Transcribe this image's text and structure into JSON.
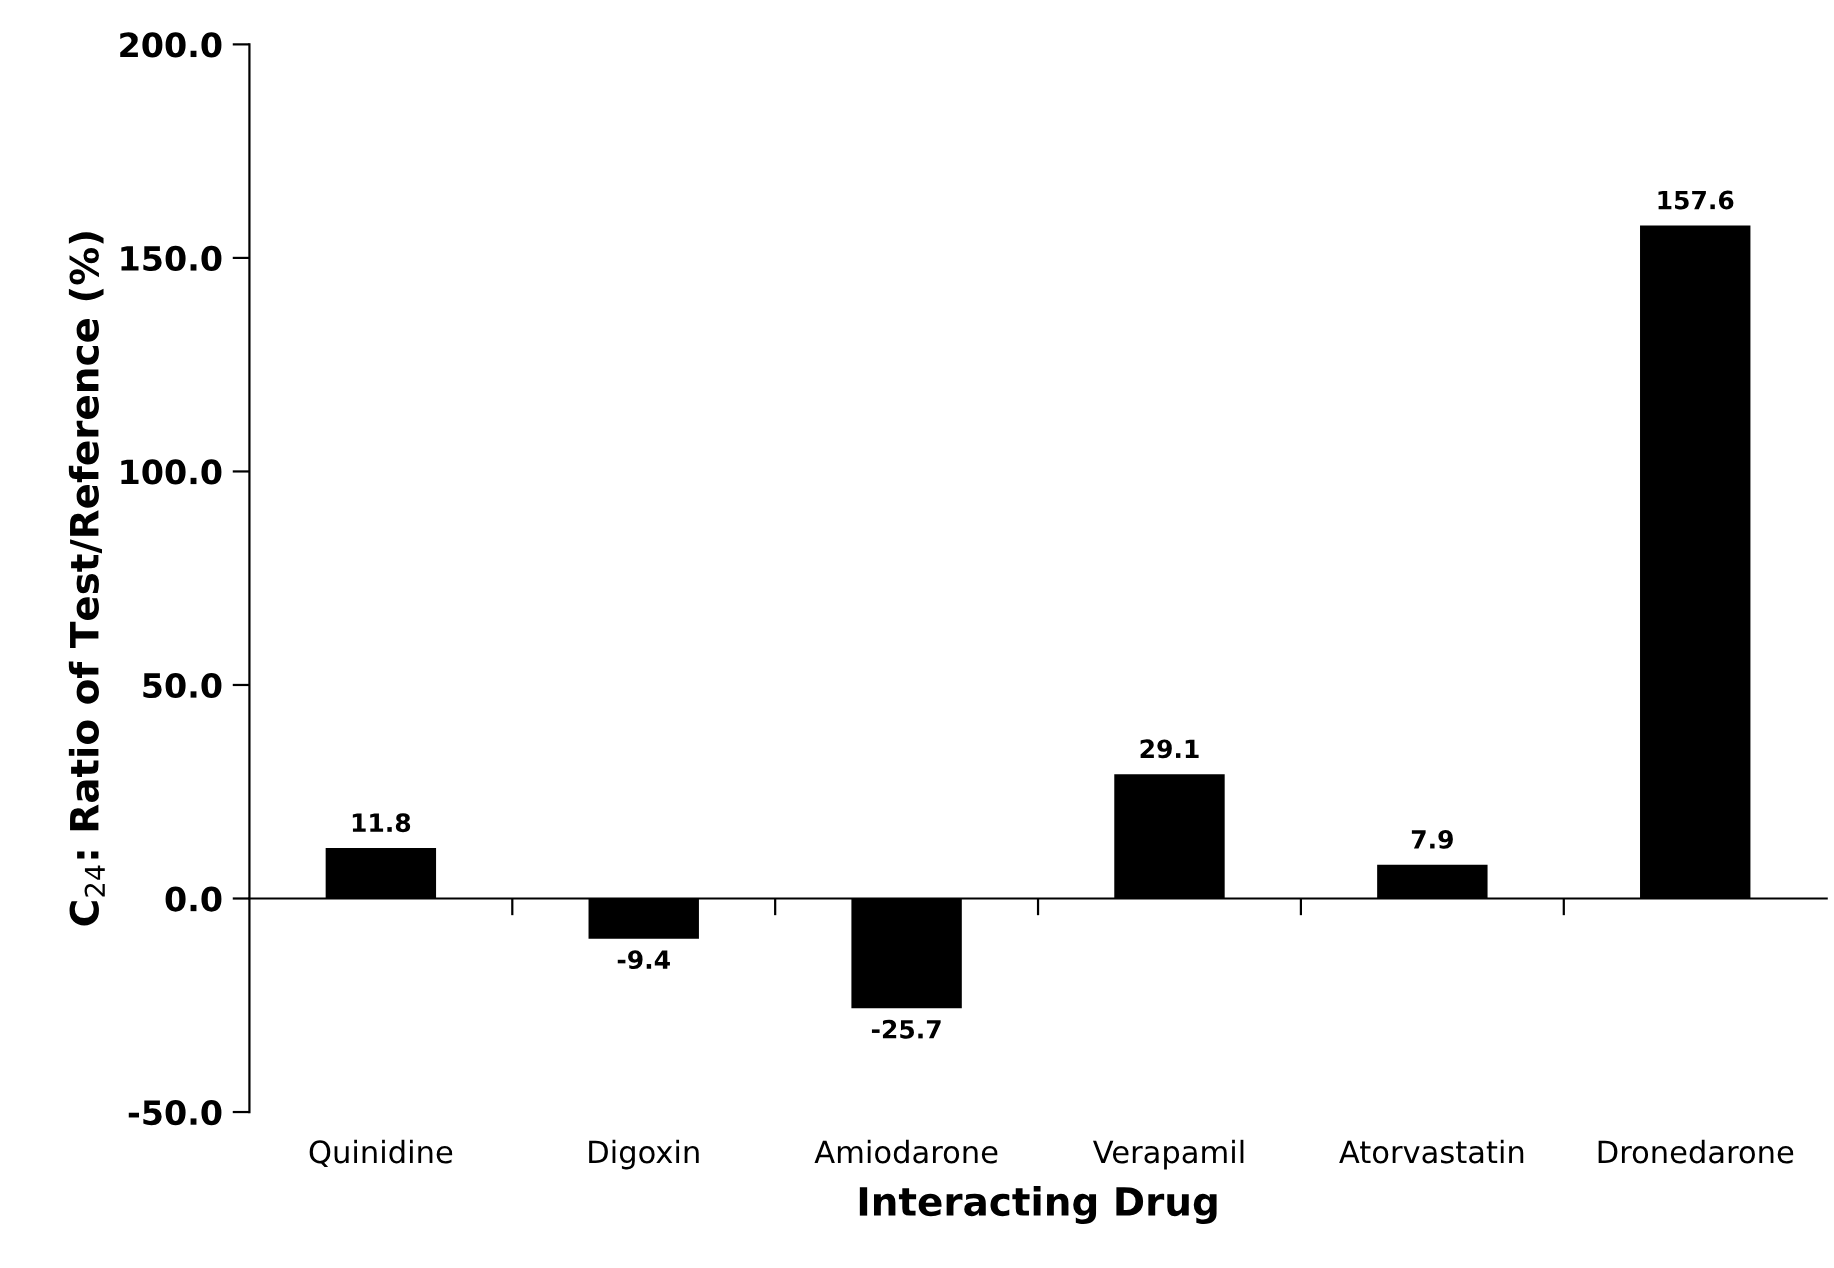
{
  "chart_data": {
    "type": "bar",
    "xlabel": "Interacting Drug",
    "ylabel": "C$_{24}$: Ratio of Test/Reference (%)",
    "categories": [
      "Quinidine",
      "Digoxin",
      "Amiodarone",
      "Verapamil",
      "Atorvastatin",
      "Dronedarone"
    ],
    "values": [
      11.8,
      -9.4,
      -25.7,
      29.1,
      7.9,
      157.6
    ],
    "color": "#000000",
    "ylim": [
      -50,
      200
    ],
    "yticks": [
      {
        "value": -50,
        "label": "-50.0"
      },
      {
        "value": 0,
        "label": "0.0"
      },
      {
        "value": 50,
        "label": "50.0"
      },
      {
        "value": 100,
        "label": "100.0"
      },
      {
        "value": 150,
        "label": "150.0"
      },
      {
        "value": 200,
        "label": "200.0"
      }
    ],
    "data_labels": true
  }
}
